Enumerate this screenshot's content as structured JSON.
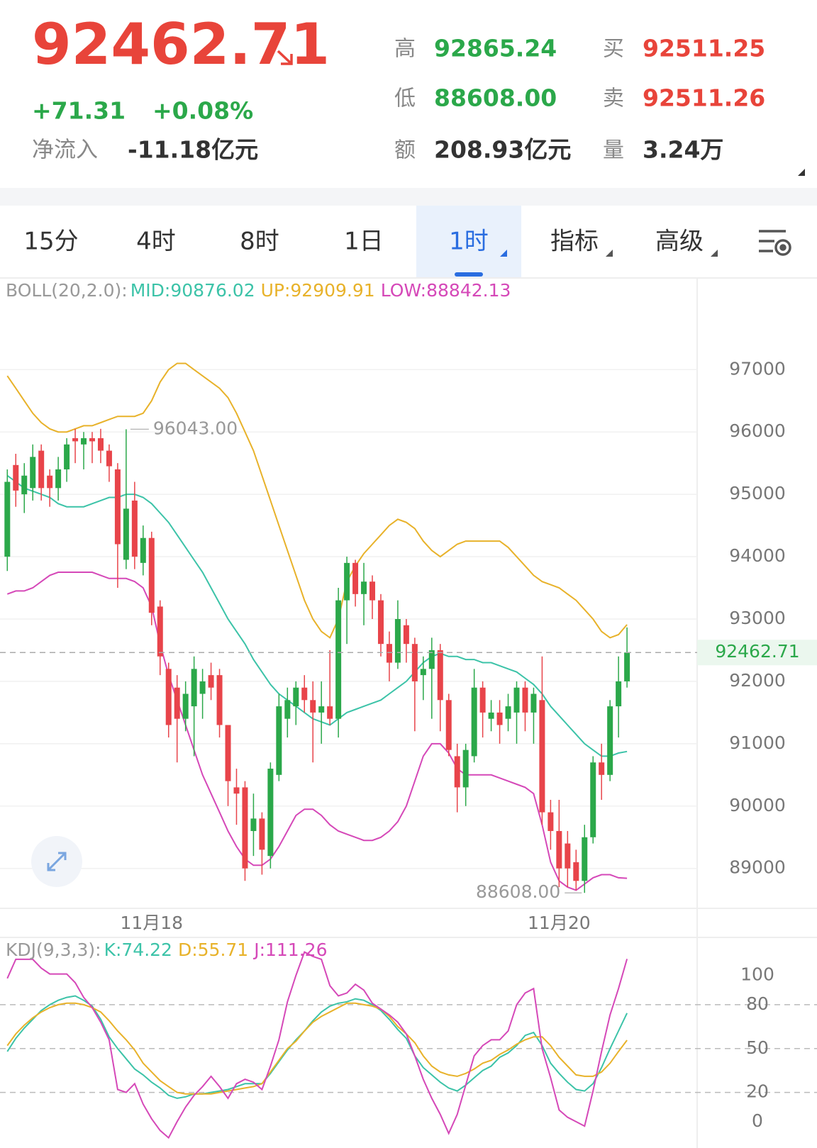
{
  "header": {
    "price": "92462.71",
    "change": "+71.31",
    "change_pct": "+0.08%",
    "net_inflow_label": "净流入",
    "net_inflow": "-11.18亿元",
    "stats": [
      {
        "label": "高",
        "value": "92865.24",
        "color": "#2ba84a"
      },
      {
        "label": "买",
        "value": "92511.25",
        "color": "#e8443a"
      },
      {
        "label": "低",
        "value": "88608.00",
        "color": "#2ba84a"
      },
      {
        "label": "卖",
        "value": "92511.26",
        "color": "#e8443a"
      },
      {
        "label": "额",
        "value": "208.93亿元",
        "color": "#333333"
      },
      {
        "label": "量",
        "value": "3.24万",
        "color": "#333333"
      }
    ]
  },
  "tabs": [
    {
      "label": "15分",
      "selected": false,
      "dropdown": false
    },
    {
      "label": "4时",
      "selected": false,
      "dropdown": false
    },
    {
      "label": "8时",
      "selected": false,
      "dropdown": false
    },
    {
      "label": "1日",
      "selected": false,
      "dropdown": false
    },
    {
      "label": "1时",
      "selected": true,
      "dropdown": true
    },
    {
      "label": "指标",
      "selected": false,
      "dropdown": true
    },
    {
      "label": "高级",
      "selected": false,
      "dropdown": true
    }
  ],
  "chart_data": [
    {
      "type": "candlestick",
      "legend_title": "BOLL(20,2.0):",
      "categories": [
        null,
        null,
        null,
        null,
        null,
        null,
        null,
        null,
        null,
        null,
        null,
        null,
        null,
        null,
        null,
        null,
        null,
        "11月18",
        null,
        null,
        null,
        null,
        null,
        null,
        null,
        null,
        null,
        null,
        null,
        null,
        null,
        null,
        null,
        null,
        null,
        null,
        null,
        null,
        null,
        null,
        null,
        null,
        null,
        null,
        null,
        null,
        null,
        null,
        null,
        null,
        null,
        null,
        null,
        null,
        null,
        null,
        null,
        null,
        null,
        null,
        null,
        null,
        null,
        null,
        null,
        "11月20",
        null,
        null,
        null,
        null,
        null,
        null,
        null,
        null
      ],
      "open": [
        94000,
        95470,
        95000,
        95100,
        95700,
        95300,
        95100,
        95400,
        95900,
        95800,
        95900,
        95900,
        95700,
        95400,
        93950,
        94900,
        93900,
        94300,
        93200,
        92200,
        91900,
        91400,
        91600,
        91800,
        92100,
        92100,
        91300,
        90300,
        90300,
        89600,
        89800,
        89200,
        90500,
        91400,
        91600,
        91900,
        91700,
        91500,
        91600,
        91400,
        93300,
        93900,
        93400,
        93600,
        93300,
        92600,
        92300,
        92900,
        92600,
        92100,
        92200,
        92500,
        91700,
        90800,
        90300,
        90800,
        91900,
        91400,
        91500,
        91400,
        91500,
        91900,
        91500,
        91700,
        89900,
        89600,
        89400,
        89100,
        88800,
        89500,
        90700,
        90500,
        91600,
        92000
      ],
      "high": [
        95400,
        95650,
        95500,
        95800,
        95800,
        95400,
        95600,
        95900,
        96050,
        96000,
        96000,
        96050,
        95800,
        95500,
        96043,
        95200,
        94500,
        94400,
        93300,
        92300,
        92100,
        92000,
        92400,
        92200,
        92300,
        92200,
        91300,
        90600,
        90400,
        90200,
        89900,
        90700,
        91800,
        91900,
        92000,
        92100,
        92000,
        92000,
        92500,
        93500,
        94000,
        93950,
        93900,
        93700,
        93400,
        92800,
        93300,
        93000,
        92700,
        92400,
        92700,
        92600,
        91800,
        91000,
        91000,
        92200,
        92000,
        91700,
        91700,
        91800,
        92000,
        92000,
        91900,
        92400,
        90100,
        90100,
        89600,
        89300,
        89700,
        90800,
        91000,
        91700,
        92400,
        92865.24
      ],
      "low": [
        93770,
        94800,
        94700,
        94900,
        94900,
        94800,
        94900,
        95200,
        95500,
        95400,
        95500,
        95500,
        95200,
        93500,
        93800,
        93800,
        93700,
        92900,
        92100,
        91100,
        90700,
        91200,
        90800,
        91400,
        91700,
        91100,
        90000,
        89700,
        88800,
        89200,
        88900,
        89000,
        90400,
        91100,
        91300,
        91500,
        90700,
        91000,
        91300,
        91100,
        92600,
        93200,
        92900,
        93000,
        92400,
        92000,
        92200,
        92300,
        91200,
        91700,
        91400,
        91200,
        90800,
        89900,
        90000,
        90700,
        91100,
        91200,
        91000,
        91200,
        91000,
        91200,
        91000,
        89700,
        89300,
        88700,
        88700,
        88650,
        88608,
        89400,
        90100,
        90400,
        91100,
        91900
      ],
      "close": [
        95200,
        95060,
        95300,
        95600,
        95100,
        95100,
        95400,
        95800,
        95850,
        95900,
        95850,
        95700,
        95450,
        94200,
        94770,
        94000,
        94300,
        93100,
        92400,
        91300,
        91400,
        91800,
        92200,
        92000,
        91900,
        91300,
        90400,
        90200,
        89000,
        89800,
        89300,
        90600,
        91600,
        91700,
        91900,
        91700,
        91500,
        91600,
        91400,
        93300,
        93900,
        93400,
        93600,
        93300,
        92600,
        92300,
        93000,
        92600,
        92000,
        92200,
        92500,
        91700,
        90900,
        90300,
        90900,
        91900,
        91500,
        91500,
        91300,
        91600,
        91900,
        91500,
        91800,
        89900,
        89600,
        89000,
        89000,
        88800,
        89500,
        90700,
        90500,
        91600,
        92000,
        92462.71
      ],
      "up_color": "#2ba84a",
      "down_color": "#e8444a",
      "series": [
        {
          "name": "MID:90876.02",
          "color": "#3cc3a8",
          "values": [
            95300,
            95200,
            95100,
            95050,
            95000,
            94950,
            94850,
            94800,
            94800,
            94800,
            94850,
            94900,
            94950,
            94950,
            95000,
            95000,
            94950,
            94850,
            94700,
            94550,
            94350,
            94150,
            93950,
            93750,
            93500,
            93250,
            93000,
            92800,
            92600,
            92350,
            92150,
            91950,
            91800,
            91700,
            91600,
            91500,
            91400,
            91350,
            91300,
            91400,
            91500,
            91550,
            91600,
            91650,
            91700,
            91800,
            91900,
            92000,
            92150,
            92300,
            92400,
            92450,
            92400,
            92400,
            92350,
            92350,
            92300,
            92300,
            92250,
            92200,
            92150,
            92050,
            91950,
            91800,
            91600,
            91450,
            91300,
            91150,
            91000,
            90900,
            90800,
            90800,
            90850,
            90876.02
          ]
        },
        {
          "name": "UP:92909.91",
          "color": "#e8b22a",
          "values": [
            96900,
            96700,
            96500,
            96300,
            96150,
            96050,
            96000,
            96000,
            96050,
            96100,
            96100,
            96150,
            96200,
            96250,
            96250,
            96250,
            96300,
            96500,
            96800,
            97000,
            97100,
            97100,
            97000,
            96900,
            96800,
            96700,
            96550,
            96300,
            96000,
            95700,
            95300,
            94900,
            94500,
            94100,
            93700,
            93300,
            93000,
            92800,
            92700,
            93000,
            93600,
            93850,
            94050,
            94200,
            94350,
            94500,
            94600,
            94550,
            94450,
            94250,
            94100,
            94000,
            94100,
            94200,
            94250,
            94250,
            94250,
            94250,
            94250,
            94150,
            94000,
            93850,
            93700,
            93600,
            93550,
            93500,
            93400,
            93300,
            93150,
            93000,
            92800,
            92700,
            92750,
            92909.91
          ]
        },
        {
          "name": "LOW:88842.13",
          "color": "#d548b8",
          "values": [
            93400,
            93450,
            93450,
            93500,
            93600,
            93700,
            93750,
            93750,
            93750,
            93750,
            93750,
            93700,
            93650,
            93650,
            93650,
            93600,
            93500,
            93200,
            92600,
            92100,
            91700,
            91300,
            90900,
            90500,
            90200,
            89900,
            89600,
            89350,
            89150,
            89050,
            89050,
            89150,
            89350,
            89600,
            89850,
            89950,
            89950,
            89850,
            89700,
            89600,
            89550,
            89500,
            89450,
            89450,
            89500,
            89600,
            89750,
            90000,
            90400,
            90800,
            91000,
            91000,
            90850,
            90600,
            90500,
            90500,
            90500,
            90500,
            90450,
            90400,
            90350,
            90300,
            90200,
            89700,
            89100,
            88800,
            88700,
            88650,
            88750,
            88850,
            88900,
            88900,
            88850,
            88842.13
          ]
        }
      ],
      "annotations": [
        {
          "text": "96043.00",
          "index": 14,
          "value": 96043,
          "side": "right"
        },
        {
          "text": "88608.00",
          "index": 68,
          "value": 88608,
          "side": "left"
        }
      ],
      "last_price": {
        "value": 92462.71,
        "label": "92462.71"
      },
      "ylim": [
        88360,
        98470
      ],
      "yticks": [
        89000,
        90000,
        91000,
        92000,
        93000,
        94000,
        95000,
        96000,
        97000
      ],
      "grid": true
    },
    {
      "type": "line",
      "legend_title": "KDJ(9,3,3):",
      "series": [
        {
          "name": "K:74.22",
          "color": "#3cc3a8",
          "values": [
            48,
            57,
            64,
            70,
            76,
            80,
            83,
            85,
            86,
            83,
            79,
            70,
            58,
            50,
            43,
            36,
            32,
            27,
            23,
            18,
            16,
            17,
            19,
            19,
            20,
            21,
            22,
            24,
            26,
            26,
            26,
            33,
            41,
            49,
            56,
            62,
            69,
            75,
            79,
            81,
            82,
            84,
            83,
            80,
            76,
            70,
            63,
            57,
            45,
            37,
            32,
            27,
            23,
            21,
            25,
            30,
            35,
            38,
            44,
            47,
            52,
            59,
            61,
            52,
            40,
            33,
            27,
            22,
            21,
            26,
            37,
            50,
            62,
            74.22
          ]
        },
        {
          "name": "D:55.71",
          "color": "#e8b22a",
          "values": [
            52,
            60,
            66,
            71,
            75,
            78,
            80,
            81,
            81,
            80,
            78,
            75,
            69,
            62,
            56,
            49,
            40,
            34,
            28,
            24,
            20,
            19,
            19,
            19,
            19,
            20,
            21,
            22,
            23,
            24,
            26,
            34,
            42,
            50,
            55,
            62,
            68,
            72,
            75,
            78,
            81,
            81,
            80,
            79,
            77,
            72,
            65,
            60,
            54,
            45,
            38,
            34,
            32,
            31,
            33,
            36,
            40,
            42,
            46,
            49,
            53,
            56,
            58,
            58,
            52,
            44,
            38,
            32,
            31,
            31,
            34,
            40,
            48,
            55.71
          ]
        },
        {
          "name": "J:111.26",
          "color": "#d548b8",
          "values": [
            98,
            111,
            111,
            111,
            105,
            101,
            101,
            101,
            95,
            85,
            78,
            68,
            56,
            22,
            20,
            26,
            12,
            2,
            -6,
            -11,
            0,
            10,
            18,
            24,
            31,
            24,
            16,
            26,
            29,
            27,
            22,
            38,
            56,
            82,
            100,
            116,
            113,
            111,
            93,
            86,
            88,
            94,
            90,
            81,
            77,
            73,
            68,
            60,
            45,
            29,
            16,
            5,
            -8,
            5,
            25,
            45,
            52,
            56,
            56,
            62,
            80,
            88,
            91,
            50,
            30,
            8,
            3,
            0,
            -3,
            21,
            48,
            73,
            91,
            111.26
          ]
        }
      ],
      "ylim": [
        -18,
        126
      ],
      "yticks": [
        0,
        20,
        50,
        80,
        100
      ],
      "dashed_grid": true
    }
  ]
}
